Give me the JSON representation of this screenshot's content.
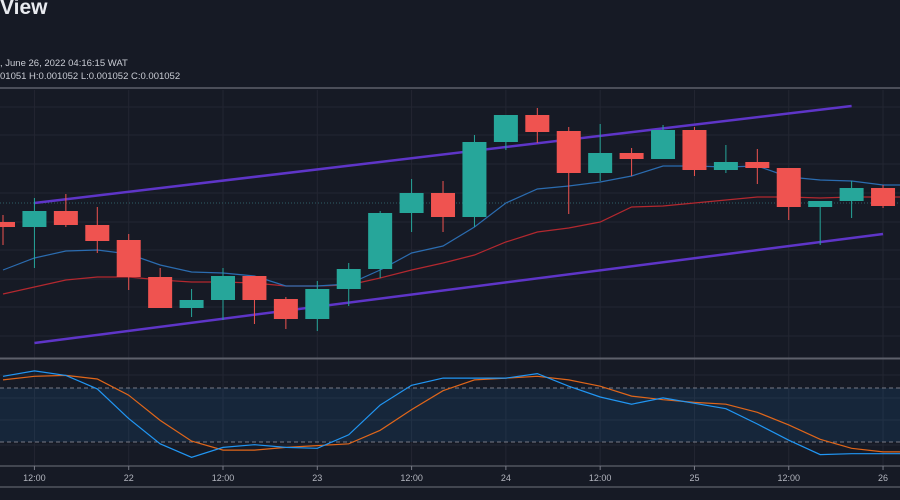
{
  "header": {
    "brand": "View",
    "date_line": ", June 26, 2022 04:16:15 WAT",
    "ohlc_line": "01051 H:0.001052 L:0.001052 C:0.001052"
  },
  "colors": {
    "background": "#161a25",
    "grid": "#232632",
    "up": "#26a69a",
    "down": "#ef5350",
    "trendline": "#5e35c8",
    "ema_fast": "#2b6cb0",
    "ema_slow": "#b3282f",
    "stoch_k": "#2196f3",
    "stoch_d": "#e0661a",
    "last_price_line": "#2f5f66"
  },
  "chart_data": [
    {
      "type": "candlestick",
      "title": "",
      "ylim": [
        0.0010365,
        0.0010633
      ],
      "last_price": 0.001052,
      "grid": true,
      "x_ticks": [
        "12:00",
        "22",
        "12:00",
        "23",
        "12:00",
        "24",
        "12:00",
        "25",
        "12:00",
        "26"
      ],
      "interval": "4h",
      "candles": [
        [
          0.0010501,
          0.0010508,
          0.0010478,
          0.0010496
        ],
        [
          0.0010496,
          0.0010525,
          0.0010455,
          0.0010512
        ],
        [
          0.0010512,
          0.0010529,
          0.0010496,
          0.0010498
        ],
        [
          0.0010498,
          0.0010516,
          0.001047,
          0.0010482
        ],
        [
          0.0010483,
          0.0010489,
          0.0010433,
          0.0010446
        ],
        [
          0.0010446,
          0.0010455,
          0.0010415,
          0.0010415
        ],
        [
          0.0010415,
          0.0010434,
          0.0010406,
          0.0010423
        ],
        [
          0.0010423,
          0.0010455,
          0.0010403,
          0.0010447
        ],
        [
          0.0010447,
          0.0010447,
          0.0010399,
          0.0010423
        ],
        [
          0.0010424,
          0.0010426,
          0.0010394,
          0.0010404
        ],
        [
          0.0010404,
          0.0010442,
          0.0010392,
          0.0010434
        ],
        [
          0.0010434,
          0.001046,
          0.0010417,
          0.0010454
        ],
        [
          0.0010454,
          0.0010512,
          0.0010445,
          0.001051
        ],
        [
          0.001051,
          0.0010544,
          0.0010491,
          0.001053
        ],
        [
          0.001053,
          0.0010542,
          0.0010491,
          0.0010506
        ],
        [
          0.0010506,
          0.0010588,
          0.0010496,
          0.0010581
        ],
        [
          0.0010581,
          0.0010608,
          0.0010573,
          0.0010608
        ],
        [
          0.0010608,
          0.0010615,
          0.001058,
          0.0010591
        ],
        [
          0.0010592,
          0.0010596,
          0.0010509,
          0.001055
        ],
        [
          0.001055,
          0.0010599,
          0.0010542,
          0.001057
        ],
        [
          0.001057,
          0.0010575,
          0.0010547,
          0.0010564
        ],
        [
          0.0010564,
          0.0010598,
          0.0010564,
          0.0010593
        ],
        [
          0.0010593,
          0.0010596,
          0.0010547,
          0.0010553
        ],
        [
          0.0010553,
          0.0010578,
          0.001055,
          0.0010561
        ],
        [
          0.0010561,
          0.0010574,
          0.0010539,
          0.0010555
        ],
        [
          0.0010555,
          0.0010555,
          0.0010503,
          0.0010516
        ],
        [
          0.0010516,
          0.0010522,
          0.0010478,
          0.0010522
        ],
        [
          0.0010522,
          0.0010542,
          0.0010505,
          0.0010535
        ],
        [
          0.0010535,
          0.0010538,
          0.0010515,
          0.0010517
        ]
      ],
      "ema_fast": [
        0.0010453,
        0.0010465,
        0.0010472,
        0.0010473,
        0.0010469,
        0.0010458,
        0.0010451,
        0.001045,
        0.0010447,
        0.0010437,
        0.0010437,
        0.0010439,
        0.0010453,
        0.001047,
        0.0010477,
        0.0010496,
        0.001052,
        0.0010534,
        0.0010537,
        0.0010541,
        0.0010547,
        0.0010557,
        0.0010557,
        0.0010556,
        0.0010557,
        0.0010546,
        0.0010543,
        0.0010542,
        0.0010538
      ],
      "ema_slow": [
        0.0010429,
        0.0010436,
        0.0010443,
        0.0010446,
        0.0010446,
        0.0010443,
        0.0010441,
        0.0010441,
        0.001044,
        0.0010437,
        0.0010437,
        0.0010438,
        0.0010445,
        0.0010453,
        0.001046,
        0.0010468,
        0.0010481,
        0.0010491,
        0.0010495,
        0.0010501,
        0.0010516,
        0.0010517,
        0.001052,
        0.0010523,
        0.0010526,
        0.0010526,
        0.0010525,
        0.0010526,
        0.0010526
      ],
      "trendlines": [
        {
          "from": [
            1,
            0.001052
          ],
          "to": [
            27,
            0.0010617
          ]
        },
        {
          "from": [
            1,
            0.001038
          ],
          "to": [
            28,
            0.0010489
          ]
        }
      ]
    },
    {
      "type": "line",
      "title": "",
      "ylim": [
        0,
        100
      ],
      "bands": [
        20,
        80
      ],
      "k": [
        93,
        99,
        94,
        79,
        46,
        18,
        3,
        14,
        17,
        14,
        13,
        28,
        61,
        83,
        91,
        91,
        91,
        96,
        82,
        70,
        62,
        69,
        63,
        57,
        40,
        22,
        6,
        7,
        7
      ],
      "d": [
        89,
        93,
        94,
        90,
        72,
        44,
        21,
        11,
        11,
        14,
        16,
        18,
        33,
        56,
        77,
        89,
        91,
        93,
        89,
        82,
        71,
        67,
        64,
        62,
        53,
        39,
        23,
        13,
        9
      ]
    }
  ]
}
